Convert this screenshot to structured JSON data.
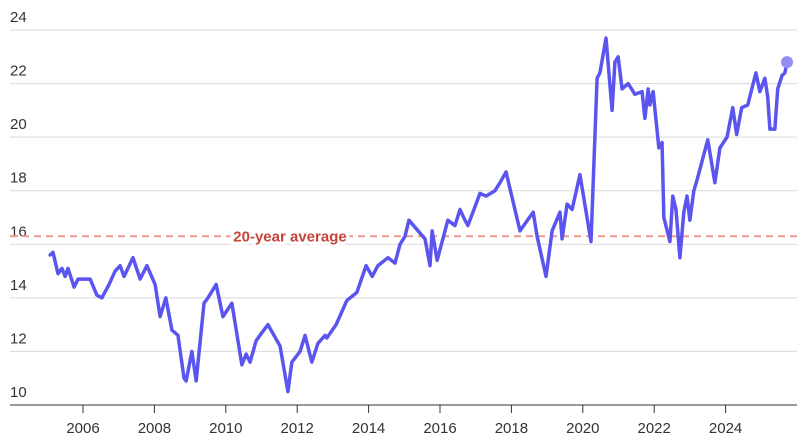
{
  "chart_data": {
    "type": "line",
    "color": "#5b55f0",
    "end_dot_color": "#938ff2",
    "grid": true,
    "xlim": [
      2004,
      2026
    ],
    "ylim": [
      10,
      24
    ],
    "xticks": [
      2006,
      2008,
      2010,
      2012,
      2014,
      2016,
      2018,
      2020,
      2022,
      2024
    ],
    "yticks": [
      10,
      12,
      14,
      16,
      18,
      20,
      22,
      24
    ],
    "average": {
      "value": 16.3,
      "label": "20-year average",
      "color": "#ee9a8a",
      "label_color": "#c8433a"
    },
    "x": [
      2005.08,
      2005.16,
      2005.3,
      2005.41,
      2005.5,
      2005.58,
      2005.75,
      2005.86,
      2006.2,
      2006.39,
      2006.53,
      2006.73,
      2006.9,
      2007.04,
      2007.15,
      2007.4,
      2007.6,
      2007.79,
      2008.02,
      2008.16,
      2008.32,
      2008.49,
      2008.66,
      2008.83,
      2008.89,
      2009.05,
      2009.17,
      2009.39,
      2009.5,
      2009.73,
      2009.92,
      2010.17,
      2010.45,
      2010.57,
      2010.68,
      2010.85,
      2011.01,
      2011.18,
      2011.52,
      2011.74,
      2011.85,
      2012.08,
      2012.22,
      2012.41,
      2012.58,
      2012.78,
      2012.83,
      2013.09,
      2013.39,
      2013.67,
      2013.93,
      2014.1,
      2014.26,
      2014.54,
      2014.74,
      2014.88,
      2015.02,
      2015.13,
      2015.58,
      2015.72,
      2015.78,
      2015.92,
      2016.22,
      2016.42,
      2016.56,
      2016.7,
      2016.78,
      2016.98,
      2017.12,
      2017.29,
      2017.54,
      2017.68,
      2017.85,
      2018.24,
      2018.61,
      2018.72,
      2018.97,
      2019.14,
      2019.36,
      2019.42,
      2019.56,
      2019.7,
      2019.92,
      2020.23,
      2020.4,
      2020.48,
      2020.65,
      2020.82,
      2020.9,
      2020.99,
      2021.1,
      2021.27,
      2021.46,
      2021.66,
      2021.74,
      2021.83,
      2021.88,
      2021.97,
      2022.13,
      2022.22,
      2022.27,
      2022.44,
      2022.52,
      2022.61,
      2022.72,
      2022.83,
      2022.92,
      2023.0,
      2023.11,
      2023.2,
      2023.5,
      2023.7,
      2023.84,
      2024.04,
      2024.2,
      2024.31,
      2024.45,
      2024.62,
      2024.85,
      2024.96,
      2025.1,
      2025.18,
      2025.24,
      2025.38,
      2025.46,
      2025.58,
      2025.66,
      2025.72
    ],
    "values": [
      15.6,
      15.7,
      14.9,
      15.1,
      14.8,
      15.1,
      14.4,
      14.7,
      14.7,
      14.1,
      14.0,
      14.5,
      15.0,
      15.2,
      14.8,
      15.5,
      14.7,
      15.2,
      14.5,
      13.3,
      14.0,
      12.8,
      12.6,
      11.0,
      10.9,
      12.0,
      10.9,
      13.8,
      14.0,
      14.5,
      13.3,
      13.8,
      11.5,
      11.9,
      11.6,
      12.4,
      12.7,
      13.0,
      12.2,
      10.5,
      11.6,
      12.0,
      12.6,
      11.6,
      12.3,
      12.6,
      12.5,
      13.0,
      13.9,
      14.2,
      15.2,
      14.8,
      15.2,
      15.5,
      15.3,
      16.0,
      16.3,
      16.9,
      16.2,
      15.2,
      16.5,
      15.4,
      16.9,
      16.7,
      17.3,
      16.9,
      16.7,
      17.4,
      17.9,
      17.8,
      18.0,
      18.3,
      18.7,
      16.5,
      17.2,
      16.3,
      14.8,
      16.5,
      17.2,
      16.2,
      17.5,
      17.3,
      18.6,
      16.1,
      22.2,
      22.4,
      23.7,
      21.0,
      22.8,
      23.0,
      21.8,
      22.0,
      21.6,
      21.7,
      20.7,
      21.8,
      21.2,
      21.7,
      19.6,
      19.8,
      17.0,
      16.1,
      17.8,
      17.3,
      15.5,
      17.2,
      17.8,
      16.9,
      18.0,
      18.4,
      19.9,
      18.3,
      19.6,
      20.0,
      21.1,
      20.1,
      21.1,
      21.2,
      22.4,
      21.7,
      22.2,
      21.5,
      20.3,
      20.3,
      21.8,
      22.3,
      22.4,
      22.8
    ]
  }
}
